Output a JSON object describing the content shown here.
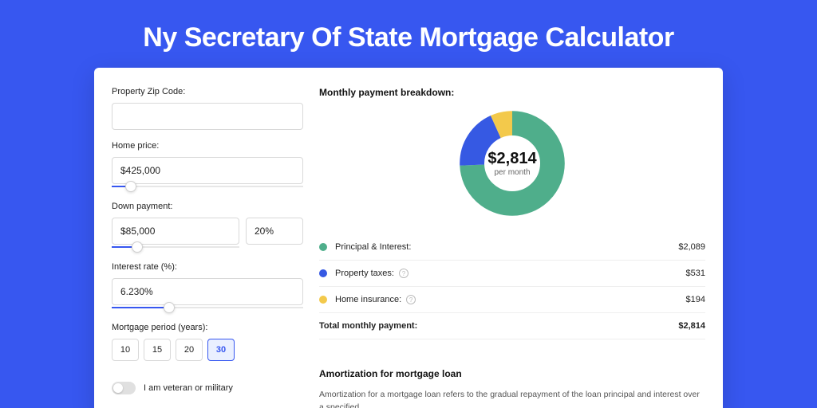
{
  "page": {
    "title": "Ny Secretary Of State Mortgage Calculator",
    "background_color": "#3757f0",
    "card_background": "#ffffff"
  },
  "form": {
    "zip": {
      "label": "Property Zip Code:",
      "value": ""
    },
    "price": {
      "label": "Home price:",
      "value": "$425,000",
      "slider_pct": 10
    },
    "down": {
      "label": "Down payment:",
      "value": "$85,000",
      "pct": "20%",
      "slider_pct": 20
    },
    "rate": {
      "label": "Interest rate (%):",
      "value": "6.230%",
      "slider_pct": 30
    },
    "period": {
      "label": "Mortgage period (years):",
      "options": [
        "10",
        "15",
        "20",
        "30"
      ],
      "selected": "30"
    },
    "veteran": {
      "label": "I am veteran or military",
      "on": false
    }
  },
  "breakdown": {
    "title": "Monthly payment breakdown:",
    "donut": {
      "value": "$2,814",
      "sub": "per month",
      "segments": [
        {
          "key": "principal",
          "pct": 74.2,
          "color": "#4fae8b"
        },
        {
          "key": "taxes",
          "pct": 18.9,
          "color": "#3659e3"
        },
        {
          "key": "insurance",
          "pct": 6.9,
          "color": "#f3c94b"
        }
      ],
      "stroke_width": 22
    },
    "rows": [
      {
        "swatch": "#4fae8b",
        "label": "Principal & Interest:",
        "value": "$2,089",
        "info": false
      },
      {
        "swatch": "#3659e3",
        "label": "Property taxes:",
        "value": "$531",
        "info": true
      },
      {
        "swatch": "#f3c94b",
        "label": "Home insurance:",
        "value": "$194",
        "info": true
      }
    ],
    "total": {
      "label": "Total monthly payment:",
      "value": "$2,814"
    }
  },
  "amortization": {
    "title": "Amortization for mortgage loan",
    "text": "Amortization for a mortgage loan refers to the gradual repayment of the loan principal and interest over a specified"
  }
}
